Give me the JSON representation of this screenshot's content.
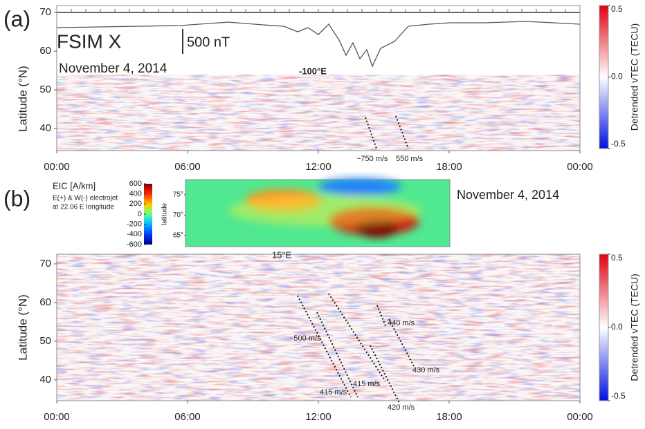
{
  "chart_data": [
    {
      "type": "heatmap",
      "panel_label": "(a)",
      "y_label": "Latitude (°N)",
      "xlim": [
        0,
        24
      ],
      "xticks": [
        {
          "value": 0,
          "label": "00:00"
        },
        {
          "value": 6,
          "label": "06:00"
        },
        {
          "value": 12,
          "label": "12:00"
        },
        {
          "value": 18,
          "label": "18:00"
        },
        {
          "value": 24,
          "label": "00:00"
        }
      ],
      "ylim": [
        34.3,
        71.8
      ],
      "yticks": [
        40,
        50,
        60,
        70
      ],
      "colorbar": {
        "label": "Detrended vTEC (TECU)",
        "lim": [
          -0.5,
          0.5
        ],
        "ticks": [
          0.5,
          {
            "value": 0,
            "label": "0.0"
          },
          -0.5
        ]
      },
      "annotations": [
        "FSIM X",
        "500 nT",
        "November 4, 2014",
        "-100°E",
        "~750 m/s",
        "550 m/s"
      ]
    },
    {
      "type": "heatmap",
      "panel_label": "(b)",
      "y_label": "Latitude (°N)",
      "xlim": [
        0,
        24
      ],
      "xticks": [
        {
          "value": 0,
          "label": "00:00"
        },
        {
          "value": 6,
          "label": "06:00"
        },
        {
          "value": 12,
          "label": "12:00"
        },
        {
          "value": 18,
          "label": "18:00"
        },
        {
          "value": 24,
          "label": "00:00"
        }
      ],
      "ylim": [
        34.6,
        72.5
      ],
      "yticks": [
        40,
        50,
        60,
        70
      ],
      "colorbar": {
        "label": "Detrended vTEC (TECU)",
        "lim": [
          -0.5,
          0.5
        ],
        "ticks": [
          0.5,
          {
            "value": 0,
            "label": "0.0"
          },
          -0.5
        ]
      },
      "annotations": [
        "15°E",
        "November 4, 2014",
        "~500 m/s",
        "440 m/s",
        "430 m/s",
        "415 m/s",
        "415 m/s",
        "420 m/s"
      ],
      "inset": {
        "title": "EIC [A/km]",
        "notes": [
          "E(+) & W(-) electrojet",
          "at 22.06  E longitude"
        ],
        "y_label": "latitude",
        "ylim": [
          62.3,
          78.7
        ],
        "yticks": [
          {
            "value": 75,
            "label": "75°"
          },
          {
            "value": 70,
            "label": "70°"
          },
          {
            "value": 65,
            "label": "65°"
          }
        ],
        "colorbar": {
          "lim": [
            -600,
            600
          ],
          "ticks": [
            600,
            400,
            200,
            0,
            -200,
            -400,
            -600
          ]
        }
      }
    }
  ]
}
